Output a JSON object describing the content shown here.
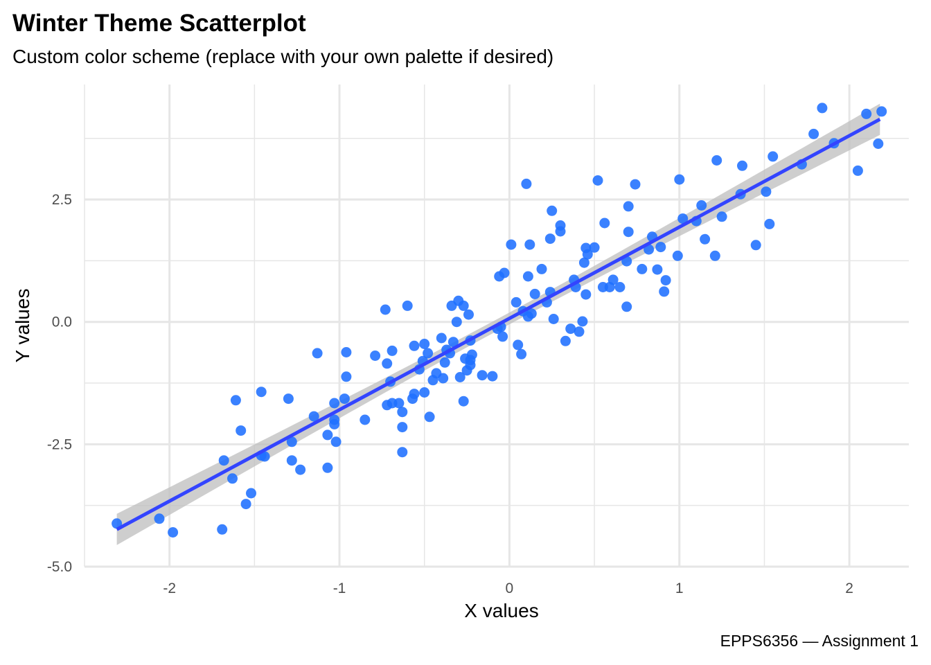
{
  "chart_data": {
    "type": "scatter",
    "title": "Winter Theme Scatterplot",
    "subtitle": "Custom color scheme (replace with your own palette if desired)",
    "caption": "EPPS6356 — Assignment 1",
    "xlabel": "X values",
    "ylabel": "Y values",
    "xlim": [
      -2.5,
      2.35
    ],
    "ylim": [
      -5.0,
      4.85
    ],
    "x_ticks": [
      -2,
      -1,
      0,
      1,
      2
    ],
    "x_tick_labels": [
      "-2",
      "-1",
      "0",
      "1",
      "2"
    ],
    "y_ticks": [
      -5.0,
      -2.5,
      0.0,
      2.5
    ],
    "y_tick_labels": [
      "-5.0",
      "-2.5",
      "0.0",
      "2.5"
    ],
    "grid": true,
    "colors": {
      "points": "#1f6fff",
      "trend": "#3344ff",
      "band": "#bdbdbd",
      "grid": "#e6e6e6"
    },
    "trend_line": {
      "method": "linear",
      "x": [
        -2.31,
        2.18
      ],
      "y": [
        -4.24,
        4.14
      ],
      "band_halfwidth_at_ends": 0.32,
      "band_halfwidth_at_center": 0.12
    },
    "points": [
      [
        -2.31,
        -4.12
      ],
      [
        -2.06,
        -4.02
      ],
      [
        -1.98,
        -4.3
      ],
      [
        -1.69,
        -4.24
      ],
      [
        -1.68,
        -2.83
      ],
      [
        -1.63,
        -3.2
      ],
      [
        -1.61,
        -1.6
      ],
      [
        -1.58,
        -2.22
      ],
      [
        -1.55,
        -3.72
      ],
      [
        -1.52,
        -3.5
      ],
      [
        -1.46,
        -1.43
      ],
      [
        -1.46,
        -2.73
      ],
      [
        -1.44,
        -2.75
      ],
      [
        -1.3,
        -1.57
      ],
      [
        -1.28,
        -2.45
      ],
      [
        -1.28,
        -2.83
      ],
      [
        -1.23,
        -3.02
      ],
      [
        -1.15,
        -1.93
      ],
      [
        -1.13,
        -0.64
      ],
      [
        -1.07,
        -2.31
      ],
      [
        -1.07,
        -2.98
      ],
      [
        -1.03,
        -1.66
      ],
      [
        -1.03,
        -2.0
      ],
      [
        -1.03,
        -2.09
      ],
      [
        -1.02,
        -2.45
      ],
      [
        -0.97,
        -1.57
      ],
      [
        -0.96,
        -0.62
      ],
      [
        -0.96,
        -1.12
      ],
      [
        -0.85,
        -2.0
      ],
      [
        -0.79,
        -0.69
      ],
      [
        -0.73,
        0.25
      ],
      [
        -0.72,
        -0.85
      ],
      [
        -0.72,
        -1.7
      ],
      [
        -0.7,
        -1.22
      ],
      [
        -0.69,
        -0.59
      ],
      [
        -0.69,
        -1.66
      ],
      [
        -0.65,
        -1.66
      ],
      [
        -0.63,
        -2.66
      ],
      [
        -0.63,
        -1.84
      ],
      [
        -0.63,
        -2.15
      ],
      [
        -0.6,
        0.33
      ],
      [
        -0.57,
        -1.57
      ],
      [
        -0.56,
        -1.47
      ],
      [
        -0.56,
        -0.49
      ],
      [
        -0.53,
        -0.97
      ],
      [
        -0.51,
        -0.8
      ],
      [
        -0.5,
        -0.45
      ],
      [
        -0.5,
        -1.44
      ],
      [
        -0.48,
        -0.64
      ],
      [
        -0.47,
        -1.94
      ],
      [
        -0.45,
        -1.19
      ],
      [
        -0.43,
        -1.05
      ],
      [
        -0.4,
        -0.33
      ],
      [
        -0.39,
        -1.15
      ],
      [
        -0.38,
        -0.83
      ],
      [
        -0.37,
        -0.57
      ],
      [
        -0.35,
        -0.64
      ],
      [
        -0.34,
        0.33
      ],
      [
        -0.33,
        -0.41
      ],
      [
        -0.31,
        0.0
      ],
      [
        -0.3,
        0.43
      ],
      [
        -0.29,
        -1.13
      ],
      [
        -0.27,
        0.33
      ],
      [
        -0.27,
        -1.62
      ],
      [
        -0.26,
        -0.75
      ],
      [
        -0.25,
        -0.99
      ],
      [
        -0.24,
        0.15
      ],
      [
        -0.23,
        -0.78
      ],
      [
        -0.23,
        -0.88
      ],
      [
        -0.22,
        -0.67
      ],
      [
        -0.23,
        -0.38
      ],
      [
        -0.16,
        -1.09
      ],
      [
        -0.1,
        -1.11
      ],
      [
        -0.07,
        -0.14
      ],
      [
        -0.06,
        0.93
      ],
      [
        -0.05,
        -0.1
      ],
      [
        -0.04,
        -0.3
      ],
      [
        -0.03,
        1.0
      ],
      [
        0.01,
        1.58
      ],
      [
        0.04,
        0.4
      ],
      [
        0.05,
        -0.47
      ],
      [
        0.07,
        -0.66
      ],
      [
        0.08,
        0.22
      ],
      [
        0.1,
        2.82
      ],
      [
        0.11,
        0.11
      ],
      [
        0.11,
        0.93
      ],
      [
        0.12,
        1.58
      ],
      [
        0.13,
        0.17
      ],
      [
        0.15,
        0.57
      ],
      [
        0.19,
        1.08
      ],
      [
        0.22,
        0.4
      ],
      [
        0.24,
        1.7
      ],
      [
        0.24,
        0.61
      ],
      [
        0.25,
        2.27
      ],
      [
        0.26,
        0.06
      ],
      [
        0.3,
        1.97
      ],
      [
        0.3,
        1.85
      ],
      [
        0.33,
        -0.39
      ],
      [
        0.36,
        -0.14
      ],
      [
        0.38,
        0.86
      ],
      [
        0.39,
        0.71
      ],
      [
        0.41,
        -0.2
      ],
      [
        0.43,
        0.01
      ],
      [
        0.44,
        1.21
      ],
      [
        0.45,
        1.51
      ],
      [
        0.45,
        0.56
      ],
      [
        0.46,
        1.38
      ],
      [
        0.5,
        1.52
      ],
      [
        0.52,
        2.89
      ],
      [
        0.55,
        0.71
      ],
      [
        0.56,
        2.02
      ],
      [
        0.59,
        0.71
      ],
      [
        0.61,
        0.86
      ],
      [
        0.65,
        0.71
      ],
      [
        0.69,
        0.31
      ],
      [
        0.69,
        1.24
      ],
      [
        0.7,
        1.84
      ],
      [
        0.7,
        2.36
      ],
      [
        0.74,
        2.81
      ],
      [
        0.78,
        1.08
      ],
      [
        0.82,
        1.48
      ],
      [
        0.84,
        1.74
      ],
      [
        0.87,
        1.07
      ],
      [
        0.89,
        1.53
      ],
      [
        0.91,
        0.62
      ],
      [
        0.92,
        0.85
      ],
      [
        0.99,
        1.35
      ],
      [
        1.0,
        2.91
      ],
      [
        1.02,
        2.11
      ],
      [
        1.1,
        2.06
      ],
      [
        1.13,
        2.38
      ],
      [
        1.15,
        1.69
      ],
      [
        1.21,
        1.35
      ],
      [
        1.22,
        3.3
      ],
      [
        1.25,
        2.15
      ],
      [
        1.36,
        2.61
      ],
      [
        1.37,
        3.19
      ],
      [
        1.45,
        1.57
      ],
      [
        1.51,
        2.66
      ],
      [
        1.53,
        2.0
      ],
      [
        1.55,
        3.38
      ],
      [
        1.72,
        3.22
      ],
      [
        1.79,
        3.84
      ],
      [
        1.84,
        4.37
      ],
      [
        1.91,
        3.65
      ],
      [
        2.05,
        3.09
      ],
      [
        2.1,
        4.25
      ],
      [
        2.17,
        3.64
      ],
      [
        2.19,
        4.3
      ]
    ]
  }
}
